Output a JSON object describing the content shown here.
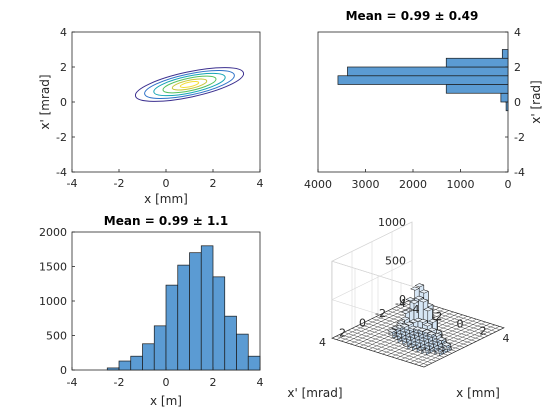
{
  "colors": {
    "bar": "#5B9BD3",
    "bar_edge": "#1a1a1a",
    "axis": "#262626",
    "surface": "#D6E6F5",
    "floor": "#FFFFFF"
  },
  "chart_data": [
    {
      "type": "contour",
      "xlabel": "x [mm]",
      "ylabel": "x' [mrad]",
      "xlim": [
        -4,
        4
      ],
      "ylim": [
        -4,
        4
      ],
      "xticks": [
        "-4",
        "-2",
        "0",
        "2",
        "4"
      ],
      "yticks": [
        "-4",
        "-2",
        "0",
        "2",
        "4"
      ],
      "center": [
        1,
        1
      ],
      "levels": [
        {
          "rx": 2.35,
          "ry": 0.72,
          "color": "#3B2F8F"
        },
        {
          "rx": 1.95,
          "ry": 0.6,
          "color": "#2E72C8"
        },
        {
          "rx": 1.55,
          "ry": 0.48,
          "color": "#15A5B5"
        },
        {
          "rx": 1.15,
          "ry": 0.36,
          "color": "#55C15E"
        },
        {
          "rx": 0.75,
          "ry": 0.24,
          "color": "#C8C53A"
        },
        {
          "rx": 0.4,
          "ry": 0.13,
          "color": "#F4DE34"
        }
      ],
      "tilt_deg": 12
    },
    {
      "type": "bar",
      "orientation": "horizontal",
      "title": "Mean = 0.99 ± 0.49",
      "ylabel": "x' [rad]",
      "xlim": [
        4000,
        0
      ],
      "ylim": [
        -4,
        4
      ],
      "xticks": [
        "4000",
        "3000",
        "2000",
        "1000",
        "0"
      ],
      "yticks": [
        "-4",
        "-2",
        "0",
        "2",
        "4"
      ],
      "bin_edges": [
        -0.5,
        0,
        0.5,
        1,
        1.5,
        2,
        2.5,
        3
      ],
      "values": [
        40,
        150,
        1300,
        3580,
        3380,
        1300,
        120
      ]
    },
    {
      "type": "bar",
      "title": "Mean = 0.99 ± 1.1",
      "xlabel": "x [m]",
      "xlim": [
        -4,
        4
      ],
      "ylim": [
        0,
        2000
      ],
      "xticks": [
        "-4",
        "-2",
        "0",
        "2",
        "4"
      ],
      "yticks": [
        "0",
        "500",
        "1000",
        "1500",
        "2000"
      ],
      "bin_edges": [
        -2.5,
        -2,
        -1.5,
        -1,
        -0.5,
        0,
        0.5,
        1,
        1.5,
        2,
        2.5,
        3,
        3.5,
        4
      ],
      "values": [
        30,
        130,
        200,
        380,
        640,
        1230,
        1520,
        1700,
        1800,
        1350,
        780,
        520,
        200
      ]
    },
    {
      "type": "bar3d",
      "xlabel": "x [mm]",
      "ylabel": "x' [mrad]",
      "zlim": [
        0,
        1000
      ],
      "zticks": [
        "0",
        "500",
        "1000"
      ],
      "xticks": [
        "-4",
        "-2",
        "0",
        "2",
        "4"
      ],
      "yticks": [
        "4",
        "2",
        "0",
        "-2",
        "-4"
      ],
      "peak_value": 730
    }
  ]
}
